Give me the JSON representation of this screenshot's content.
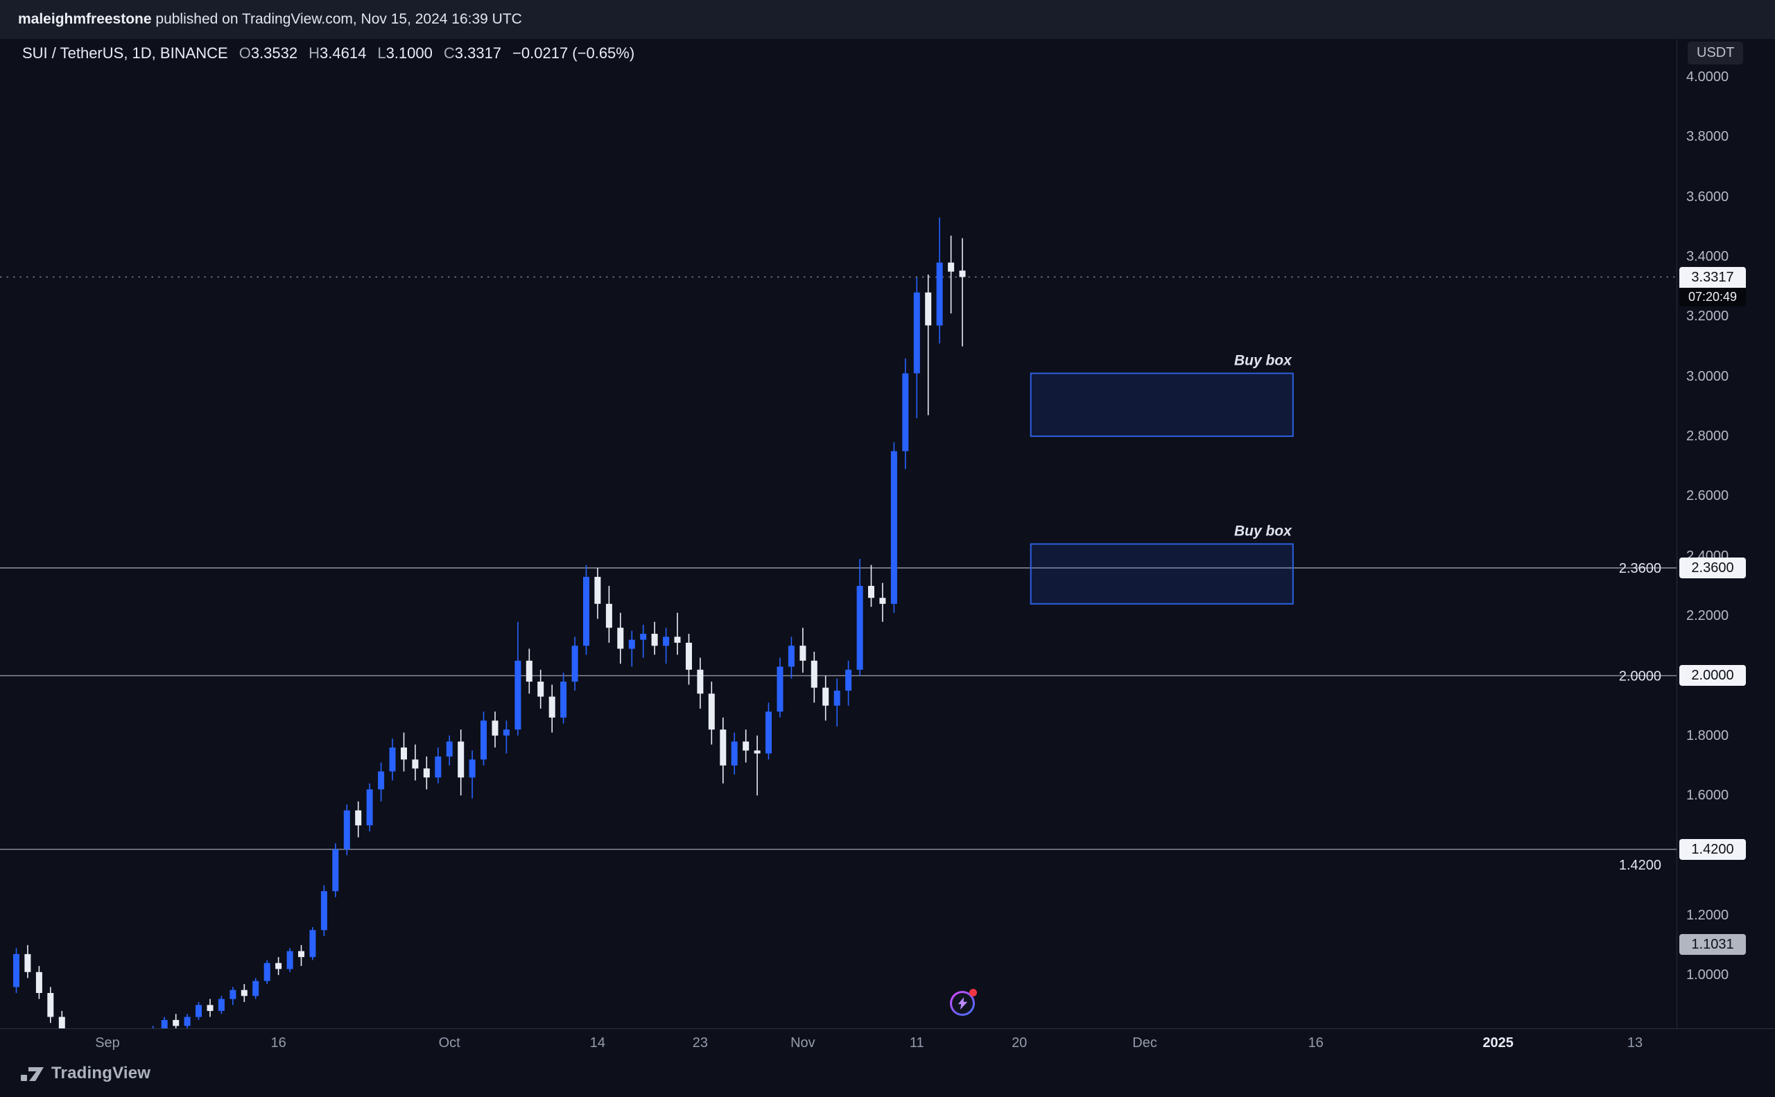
{
  "topbar": {
    "username": "maleighmfreestone",
    "publish_info": " published on TradingView.com, Nov 15, 2024 16:39 UTC"
  },
  "header": {
    "symbol": "SUI / TetherUS, 1D, BINANCE",
    "o_label": "O",
    "o_val": "3.3532",
    "h_label": "H",
    "h_val": "3.4614",
    "l_label": "L",
    "l_val": "3.1000",
    "c_label": "C",
    "c_val": "3.3317",
    "change": "−0.0217 (−0.65%)"
  },
  "axis": {
    "currency": "USDT"
  },
  "footer": {
    "brand": "TradingView"
  },
  "icons": {
    "watermark": "tradingview-logo-icon",
    "marker": "lightning-flash-icon"
  },
  "chart_data": {
    "type": "candlestick",
    "title": "SUI / TetherUS, 1D, BINANCE",
    "timeframe": "1D",
    "start_date": "2024-08-24",
    "interval_days": 1,
    "y_axis": {
      "visible_top": 4.0,
      "visible_bottom": 0.82,
      "ticks": [
        {
          "label": "4.0000",
          "price": 4.0
        },
        {
          "label": "3.8000",
          "price": 3.8
        },
        {
          "label": "3.6000",
          "price": 3.6
        },
        {
          "label": "3.4000",
          "price": 3.4
        },
        {
          "label": "3.2000",
          "price": 3.2
        },
        {
          "label": "3.0000",
          "price": 3.0
        },
        {
          "label": "2.8000",
          "price": 2.8
        },
        {
          "label": "2.6000",
          "price": 2.6
        },
        {
          "label": "2.4000",
          "price": 2.4
        },
        {
          "label": "2.2000",
          "price": 2.2
        },
        {
          "label": "1.8000",
          "price": 1.8
        },
        {
          "label": "1.6000",
          "price": 1.6
        },
        {
          "label": "1.2000",
          "price": 1.2
        },
        {
          "label": "1.0000",
          "price": 1.0
        }
      ]
    },
    "h_lines": [
      {
        "price": 2.36,
        "label": "2.3600",
        "label_below": false
      },
      {
        "price": 2.0,
        "label": "2.0000",
        "label_below": false
      },
      {
        "price": 1.42,
        "label": "1.4200",
        "label_below": true
      }
    ],
    "last_price": {
      "value": 3.3317,
      "label": "3.3317",
      "countdown": "07:20:49",
      "direction": "down"
    },
    "extra_axis_labels": [
      {
        "price": 1.1031,
        "label": "1.1031"
      }
    ],
    "buy_boxes": [
      {
        "label": "Buy box",
        "price_top": 3.01,
        "price_bottom": 2.8,
        "date_start": "2024-11-21",
        "date_end": "2024-12-14"
      },
      {
        "label": "Buy box",
        "price_top": 2.44,
        "price_bottom": 2.24,
        "date_start": "2024-11-21",
        "date_end": "2024-12-14"
      }
    ],
    "x_labels": [
      {
        "text": "Sep",
        "date": "2024-09-01",
        "bold": false
      },
      {
        "text": "16",
        "date": "2024-09-16",
        "bold": false
      },
      {
        "text": "Oct",
        "date": "2024-10-01",
        "bold": false
      },
      {
        "text": "14",
        "date": "2024-10-14",
        "bold": false
      },
      {
        "text": "23",
        "date": "2024-10-23",
        "bold": false
      },
      {
        "text": "Nov",
        "date": "2024-11-01",
        "bold": false
      },
      {
        "text": "11",
        "date": "2024-11-11",
        "bold": false
      },
      {
        "text": "20",
        "date": "2024-11-20",
        "bold": false
      },
      {
        "text": "Dec",
        "date": "2024-12-01",
        "bold": false
      },
      {
        "text": "16",
        "date": "2024-12-16",
        "bold": false
      },
      {
        "text": "2025",
        "date": "2025-01-01",
        "bold": true
      },
      {
        "text": "13",
        "date": "2025-01-13",
        "bold": false
      }
    ],
    "colors": {
      "up": "#2962ff",
      "down": "#e9edf4",
      "h_line": "#9095a2",
      "last_line": "#7d8290",
      "box_fill": "rgba(41,98,255,0.13)",
      "box_stroke": "#2e5fe0",
      "box_label": "#dfe3ec",
      "line_label": "#e2e5ee"
    },
    "ohlc": [
      [
        0.96,
        1.09,
        0.94,
        1.07
      ],
      [
        1.07,
        1.1,
        0.99,
        1.01
      ],
      [
        1.01,
        1.03,
        0.92,
        0.94
      ],
      [
        0.94,
        0.96,
        0.84,
        0.86
      ],
      [
        0.86,
        0.88,
        0.79,
        0.81
      ],
      [
        0.81,
        0.82,
        0.76,
        0.78
      ],
      [
        0.78,
        0.8,
        0.75,
        0.79
      ],
      [
        0.79,
        0.81,
        0.77,
        0.8
      ],
      [
        0.8,
        0.81,
        0.76,
        0.77
      ],
      [
        0.77,
        0.79,
        0.74,
        0.78
      ],
      [
        0.78,
        0.8,
        0.76,
        0.79
      ],
      [
        0.79,
        0.81,
        0.77,
        0.8
      ],
      [
        0.8,
        0.83,
        0.78,
        0.82
      ],
      [
        0.82,
        0.86,
        0.8,
        0.85
      ],
      [
        0.85,
        0.87,
        0.82,
        0.83
      ],
      [
        0.83,
        0.87,
        0.81,
        0.86
      ],
      [
        0.86,
        0.91,
        0.85,
        0.9
      ],
      [
        0.9,
        0.92,
        0.86,
        0.88
      ],
      [
        0.88,
        0.93,
        0.87,
        0.92
      ],
      [
        0.92,
        0.96,
        0.9,
        0.95
      ],
      [
        0.95,
        0.97,
        0.91,
        0.93
      ],
      [
        0.93,
        0.99,
        0.92,
        0.98
      ],
      [
        0.98,
        1.05,
        0.97,
        1.04
      ],
      [
        1.04,
        1.06,
        1.0,
        1.02
      ],
      [
        1.02,
        1.09,
        1.01,
        1.08
      ],
      [
        1.08,
        1.1,
        1.03,
        1.06
      ],
      [
        1.06,
        1.16,
        1.05,
        1.15
      ],
      [
        1.15,
        1.3,
        1.13,
        1.28
      ],
      [
        1.28,
        1.44,
        1.26,
        1.42
      ],
      [
        1.42,
        1.57,
        1.4,
        1.55
      ],
      [
        1.55,
        1.58,
        1.46,
        1.5
      ],
      [
        1.5,
        1.64,
        1.48,
        1.62
      ],
      [
        1.62,
        1.71,
        1.58,
        1.68
      ],
      [
        1.68,
        1.79,
        1.65,
        1.76
      ],
      [
        1.76,
        1.81,
        1.68,
        1.72
      ],
      [
        1.72,
        1.77,
        1.65,
        1.69
      ],
      [
        1.69,
        1.73,
        1.62,
        1.66
      ],
      [
        1.66,
        1.76,
        1.64,
        1.73
      ],
      [
        1.73,
        1.8,
        1.7,
        1.78
      ],
      [
        1.78,
        1.82,
        1.6,
        1.66
      ],
      [
        1.66,
        1.75,
        1.59,
        1.72
      ],
      [
        1.72,
        1.88,
        1.7,
        1.85
      ],
      [
        1.85,
        1.88,
        1.76,
        1.8
      ],
      [
        1.8,
        1.85,
        1.74,
        1.82
      ],
      [
        1.82,
        2.18,
        1.8,
        2.05
      ],
      [
        2.05,
        2.09,
        1.94,
        1.98
      ],
      [
        1.98,
        2.02,
        1.89,
        1.93
      ],
      [
        1.93,
        1.97,
        1.81,
        1.86
      ],
      [
        1.86,
        2.01,
        1.84,
        1.98
      ],
      [
        1.98,
        2.13,
        1.95,
        2.1
      ],
      [
        2.1,
        2.37,
        2.07,
        2.33
      ],
      [
        2.33,
        2.36,
        2.19,
        2.24
      ],
      [
        2.24,
        2.3,
        2.11,
        2.16
      ],
      [
        2.16,
        2.21,
        2.04,
        2.09
      ],
      [
        2.09,
        2.15,
        2.03,
        2.12
      ],
      [
        2.12,
        2.17,
        2.06,
        2.14
      ],
      [
        2.14,
        2.18,
        2.07,
        2.1
      ],
      [
        2.1,
        2.16,
        2.04,
        2.13
      ],
      [
        2.13,
        2.21,
        2.07,
        2.11
      ],
      [
        2.11,
        2.14,
        1.97,
        2.02
      ],
      [
        2.02,
        2.06,
        1.89,
        1.94
      ],
      [
        1.94,
        1.98,
        1.77,
        1.82
      ],
      [
        1.82,
        1.86,
        1.64,
        1.7
      ],
      [
        1.7,
        1.81,
        1.67,
        1.78
      ],
      [
        1.78,
        1.82,
        1.71,
        1.75
      ],
      [
        1.75,
        1.8,
        1.6,
        1.74
      ],
      [
        1.74,
        1.91,
        1.72,
        1.88
      ],
      [
        1.88,
        2.06,
        1.86,
        2.03
      ],
      [
        2.03,
        2.13,
        1.99,
        2.1
      ],
      [
        2.1,
        2.16,
        2.01,
        2.05
      ],
      [
        2.05,
        2.08,
        1.91,
        1.96
      ],
      [
        1.96,
        2.0,
        1.85,
        1.9
      ],
      [
        1.9,
        1.99,
        1.83,
        1.95
      ],
      [
        1.95,
        2.05,
        1.9,
        2.02
      ],
      [
        2.02,
        2.39,
        2.0,
        2.3
      ],
      [
        2.3,
        2.37,
        2.23,
        2.26
      ],
      [
        2.26,
        2.31,
        2.18,
        2.24
      ],
      [
        2.24,
        2.78,
        2.21,
        2.75
      ],
      [
        2.75,
        3.06,
        2.69,
        3.01
      ],
      [
        3.01,
        3.33,
        2.86,
        3.28
      ],
      [
        3.28,
        3.34,
        2.87,
        3.17
      ],
      [
        3.17,
        3.53,
        3.11,
        3.38
      ],
      [
        3.38,
        3.47,
        3.21,
        3.35
      ],
      [
        3.3532,
        3.4614,
        3.1,
        3.3317
      ]
    ]
  }
}
